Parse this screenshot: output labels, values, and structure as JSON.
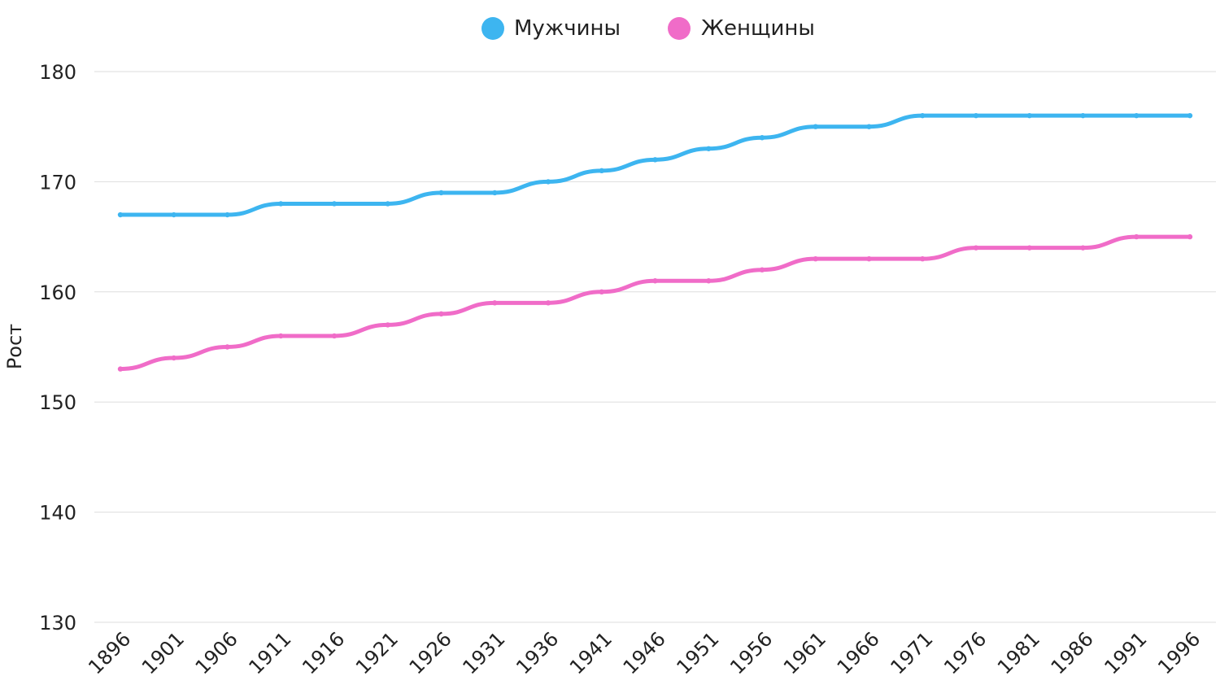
{
  "chart_data": {
    "type": "line",
    "title": "",
    "xlabel": "",
    "ylabel": "Рост",
    "ylim": [
      130,
      180
    ],
    "yticks": [
      130,
      140,
      150,
      160,
      170,
      180
    ],
    "grid": true,
    "legend_position": "top-center",
    "categories": [
      "1896",
      "1901",
      "1906",
      "1911",
      "1916",
      "1921",
      "1926",
      "1931",
      "1936",
      "1941",
      "1946",
      "1951",
      "1956",
      "1961",
      "1966",
      "1971",
      "1976",
      "1981",
      "1986",
      "1991",
      "1996"
    ],
    "series": [
      {
        "name": "Мужчины",
        "color": "#3db5f0",
        "values": [
          167,
          167,
          167,
          168,
          168,
          168,
          169,
          169,
          170,
          171,
          172,
          173,
          174,
          175,
          175,
          176,
          176,
          176,
          176,
          176,
          176
        ]
      },
      {
        "name": "Женщины",
        "color": "#f06cc8",
        "values": [
          153,
          154,
          155,
          156,
          156,
          157,
          158,
          159,
          159,
          160,
          161,
          161,
          162,
          163,
          163,
          163,
          164,
          164,
          164,
          165,
          165
        ]
      }
    ]
  }
}
